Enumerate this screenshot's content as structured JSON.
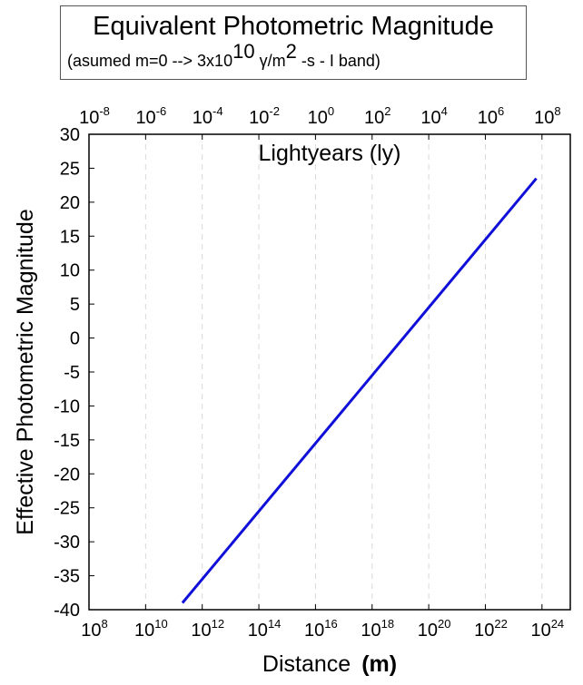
{
  "title": {
    "main": "Equivalent Photometric Magnitude",
    "sub_pre": "(asumed m=0 --> 3x10",
    "sub_exp1": "10",
    "sub_mid": " γ/m",
    "sub_exp2": "2",
    "sub_post": " -s - I band)"
  },
  "chart_data": {
    "type": "line",
    "title": "Equivalent Photometric Magnitude",
    "xlabel": "Distance",
    "xlabel_unit": "(m)",
    "ylabel": "Effective Photometric Magnitude",
    "x2label": "Lightyears (ly)",
    "xscale": "log",
    "xlim": [
      100000000.0,
      1e+25
    ],
    "ylim": [
      -40,
      30
    ],
    "x2lim": [
      1e-08,
      1000000000.0
    ],
    "grid": "x-dashed",
    "x_ticks": [
      {
        "base": "10",
        "exp": "8",
        "value": 100000000.0
      },
      {
        "base": "10",
        "exp": "10",
        "value": 10000000000.0
      },
      {
        "base": "10",
        "exp": "12",
        "value": 1000000000000.0
      },
      {
        "base": "10",
        "exp": "14",
        "value": 100000000000000.0
      },
      {
        "base": "10",
        "exp": "16",
        "value": 1e+16
      },
      {
        "base": "10",
        "exp": "18",
        "value": 1e+18
      },
      {
        "base": "10",
        "exp": "20",
        "value": 1e+20
      },
      {
        "base": "10",
        "exp": "22",
        "value": 1e+22
      },
      {
        "base": "10",
        "exp": "24",
        "value": 1e+24
      }
    ],
    "x2_ticks": [
      {
        "base": "10",
        "exp": "-8",
        "value": 1e-08
      },
      {
        "base": "10",
        "exp": "-6",
        "value": 1e-06
      },
      {
        "base": "10",
        "exp": "-4",
        "value": 0.0001
      },
      {
        "base": "10",
        "exp": "-2",
        "value": 0.01
      },
      {
        "base": "10",
        "exp": "0",
        "value": 1
      },
      {
        "base": "10",
        "exp": "2",
        "value": 100.0
      },
      {
        "base": "10",
        "exp": "4",
        "value": 10000.0
      },
      {
        "base": "10",
        "exp": "6",
        "value": 1000000.0
      },
      {
        "base": "10",
        "exp": "8",
        "value": 100000000.0
      }
    ],
    "y_ticks": [
      "30",
      "25",
      "20",
      "15",
      "10",
      "5",
      "0",
      "-5",
      "-10",
      "-15",
      "-20",
      "-25",
      "-30",
      "-35",
      "-40"
    ],
    "series": [
      {
        "color": "#1010d8",
        "x": [
          200000000000.0,
          6.3e+23
        ],
        "y": [
          -39.0,
          23.5
        ]
      }
    ]
  }
}
